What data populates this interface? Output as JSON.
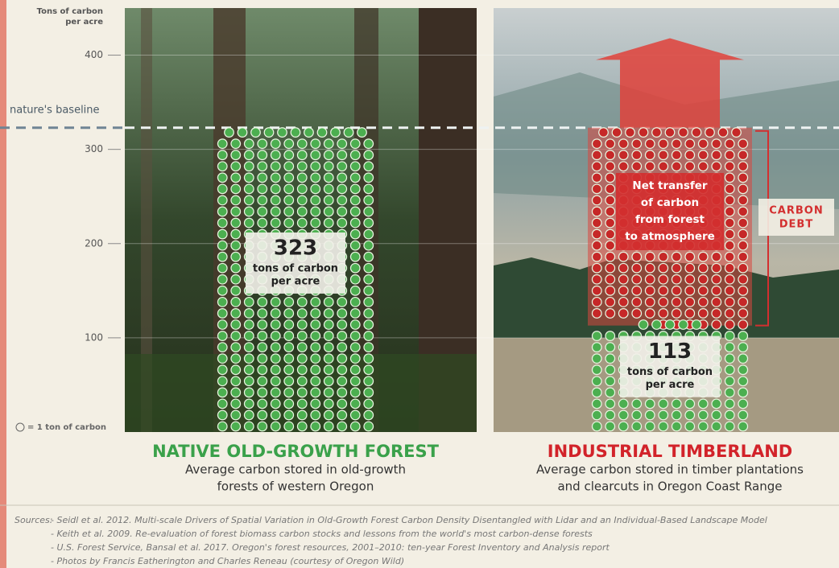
{
  "chart_data": {
    "type": "dot",
    "y_label": [
      "Tons of carbon",
      "per acre"
    ],
    "ylim": [
      0,
      450
    ],
    "yticks": [
      100,
      200,
      300,
      400
    ],
    "baseline": {
      "label": "nature's baseline",
      "value": 323
    },
    "legend": "= 1 ton of carbon",
    "panels": [
      {
        "title": "NATIVE OLD-GROWTH FOREST",
        "subtitle": [
          "Average carbon stored in old-growth",
          "forests of western Oregon"
        ],
        "value": 323,
        "unit": [
          "tons of carbon",
          "per acre"
        ],
        "color": "#4caf50",
        "title_color": "#3aa14a"
      },
      {
        "title": "INDUSTRIAL TIMBERLAND",
        "subtitle": [
          "Average carbon stored in timber plantations",
          "and clearcuts in Oregon Coast Range"
        ],
        "value": 113,
        "unit": [
          "tons of carbon",
          "per acre"
        ],
        "color": "#4caf50",
        "debt_color": "#c62828",
        "title_color": "#d2232a"
      }
    ],
    "annotations": {
      "transfer": [
        "Net transfer",
        "of carbon",
        "from forest",
        "to atmosphere"
      ],
      "debt": [
        "CARBON",
        "DEBT"
      ]
    },
    "sources_label": "Sources:",
    "sources": [
      "- Seidl et al. 2012. Multi-scale Drivers of Spatial Variation in Old-Growth Forest Carbon Density Disentangled with Lidar and an Individual-Based Landscape Model",
      "- Keith et al. 2009. Re-evaluation of forest biomass carbon stocks and lessons from the world's most carbon-dense forests",
      "- U.S. Forest Service, Bansal et al. 2017. Oregon's forest resources, 2001–2010: ten-year Forest Inventory and Analysis report",
      "- Photos by Francis Eatherington and Charles Reneau (courtesy of Oregon Wild)"
    ]
  }
}
